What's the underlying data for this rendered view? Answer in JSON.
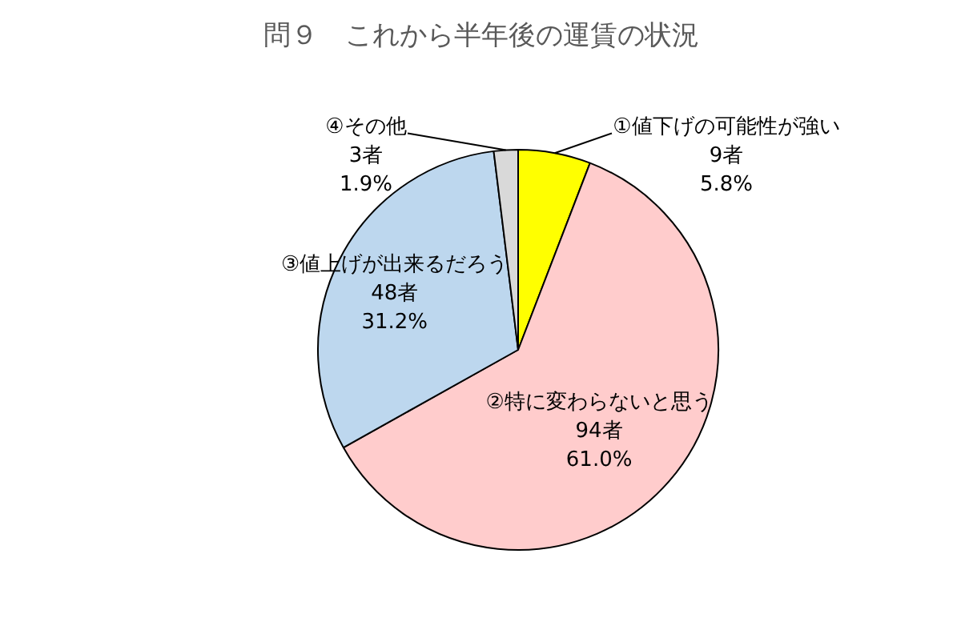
{
  "chart_data": {
    "type": "pie",
    "title": "問９　これから半年後の運賃の状況",
    "categories": [
      "①値下げの可能性が強い",
      "②特に変わらないと思う",
      "③値上げが出来るだろう",
      "④その他"
    ],
    "values": [
      9,
      94,
      48,
      3
    ],
    "value_labels": [
      "9者\n5.8%",
      "94者\n61.0%",
      "48者\n31.2%",
      "3者\n1.9%"
    ],
    "colors": [
      "#ffff00",
      "#ffcccc",
      "#bdd7ee",
      "#d9d9d9"
    ]
  }
}
